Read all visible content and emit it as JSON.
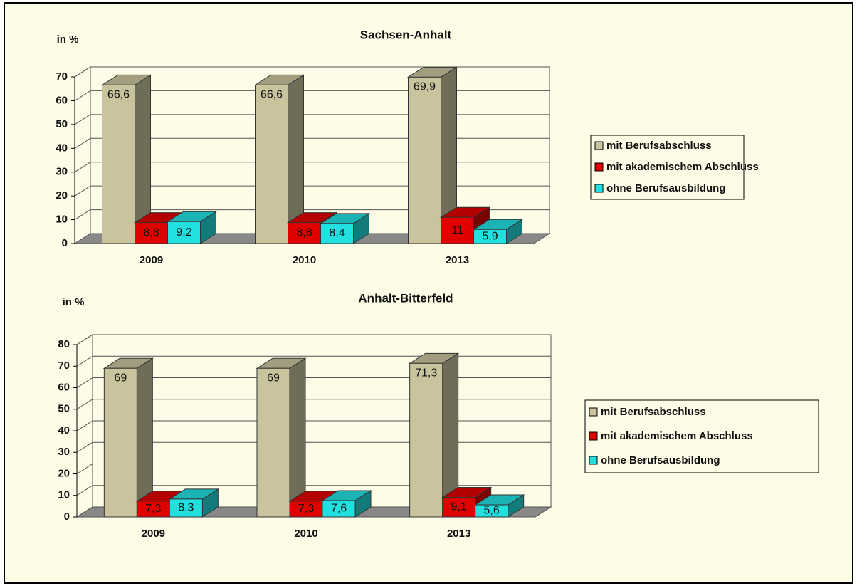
{
  "chart_data": [
    {
      "type": "bar3d",
      "title": "Sachsen-Anhalt",
      "y_label": "in %",
      "categories": [
        "2009",
        "2010",
        "2013"
      ],
      "series": [
        {
          "name": "mit Berufsabschluss",
          "color": "#c9c49e",
          "values": [
            66.6,
            66.6,
            69.9
          ],
          "value_labels": [
            "66,6",
            "66,6",
            "69,9"
          ]
        },
        {
          "name": "mit akademischem Abschluss",
          "color": "#e00000",
          "values": [
            8.8,
            8.8,
            11
          ],
          "value_labels": [
            "8,8",
            "8,8",
            "11"
          ]
        },
        {
          "name": "ohne Berufsausbildung",
          "color": "#22e0e0",
          "values": [
            9.2,
            8.4,
            5.9
          ],
          "value_labels": [
            "9,2",
            "8,4",
            "5,9"
          ]
        }
      ],
      "ylim": [
        0,
        70
      ],
      "yticks": [
        0,
        10,
        20,
        30,
        40,
        50,
        60,
        70
      ],
      "grid": true,
      "legend": "right"
    },
    {
      "type": "bar3d",
      "title": "Anhalt-Bitterfeld",
      "y_label": "in %",
      "categories": [
        "2009",
        "2010",
        "2013"
      ],
      "series": [
        {
          "name": "mit Berufsabschluss",
          "color": "#c9c49e",
          "values": [
            69,
            69,
            71.3
          ],
          "value_labels": [
            "69",
            "69",
            "71,3"
          ]
        },
        {
          "name": "mit akademischem Abschluss",
          "color": "#e00000",
          "values": [
            7.3,
            7.3,
            9.1
          ],
          "value_labels": [
            "7,3",
            "7,3",
            "9,1"
          ]
        },
        {
          "name": "ohne Berufsausbildung",
          "color": "#22e0e0",
          "values": [
            8.3,
            7.6,
            5.6
          ],
          "value_labels": [
            "8,3",
            "7,6",
            "5,6"
          ]
        }
      ],
      "ylim": [
        0,
        80
      ],
      "yticks": [
        0,
        10,
        20,
        30,
        40,
        50,
        60,
        70,
        80
      ],
      "grid": true,
      "legend": "right"
    }
  ]
}
